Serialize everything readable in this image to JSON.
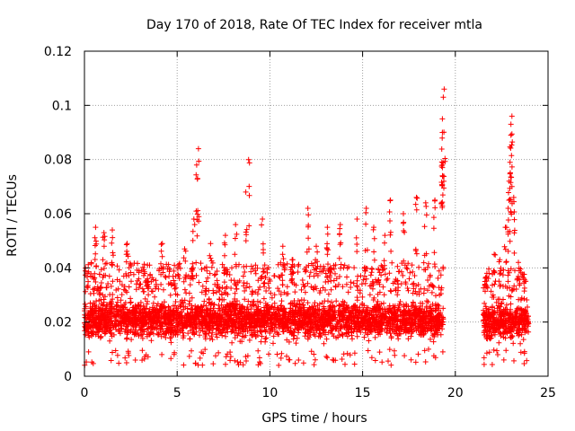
{
  "chart_data": {
    "type": "scatter",
    "title": "Day 170 of 2018, Rate Of TEC Index for receiver mtla",
    "xlabel": "GPS time / hours",
    "ylabel": "ROTI / TECUs",
    "xlim": [
      0,
      25
    ],
    "ylim": [
      0,
      0.12
    ],
    "xticks": [
      0,
      5,
      10,
      15,
      20,
      25
    ],
    "yticks": [
      0,
      0.02,
      0.04,
      0.06,
      0.08,
      0.1,
      0.12
    ],
    "xtick_labels": [
      "0",
      "5",
      "10",
      "15",
      "20",
      "25"
    ],
    "ytick_labels": [
      "0",
      "0.02",
      "0.04",
      "0.06",
      "0.08",
      "0.1",
      "0.12"
    ],
    "grid": true,
    "marker": "+",
    "color": "#ff0000",
    "data_segments": [
      {
        "x_start": 0.0,
        "x_end": 19.35,
        "typical_range": [
          0.006,
          0.032
        ]
      },
      {
        "x_start": 21.5,
        "x_end": 23.95,
        "typical_range": [
          0.006,
          0.03
        ]
      }
    ],
    "peaks": [
      {
        "x": 0.15,
        "y": 0.038
      },
      {
        "x": 0.6,
        "y": 0.055
      },
      {
        "x": 1.05,
        "y": 0.053
      },
      {
        "x": 1.5,
        "y": 0.054
      },
      {
        "x": 2.3,
        "y": 0.049
      },
      {
        "x": 3.4,
        "y": 0.036
      },
      {
        "x": 4.2,
        "y": 0.049
      },
      {
        "x": 5.4,
        "y": 0.047
      },
      {
        "x": 5.9,
        "y": 0.058
      },
      {
        "x": 6.05,
        "y": 0.078
      },
      {
        "x": 6.15,
        "y": 0.084
      },
      {
        "x": 6.1,
        "y": 0.073
      },
      {
        "x": 6.8,
        "y": 0.049
      },
      {
        "x": 7.6,
        "y": 0.052
      },
      {
        "x": 8.15,
        "y": 0.056
      },
      {
        "x": 8.7,
        "y": 0.068
      },
      {
        "x": 8.85,
        "y": 0.08
      },
      {
        "x": 9.6,
        "y": 0.058
      },
      {
        "x": 10.7,
        "y": 0.048
      },
      {
        "x": 11.2,
        "y": 0.043
      },
      {
        "x": 12.05,
        "y": 0.062
      },
      {
        "x": 12.5,
        "y": 0.048
      },
      {
        "x": 13.1,
        "y": 0.055
      },
      {
        "x": 13.8,
        "y": 0.056
      },
      {
        "x": 14.7,
        "y": 0.058
      },
      {
        "x": 15.2,
        "y": 0.062
      },
      {
        "x": 15.6,
        "y": 0.055
      },
      {
        "x": 16.2,
        "y": 0.052
      },
      {
        "x": 16.5,
        "y": 0.065
      },
      {
        "x": 17.2,
        "y": 0.06
      },
      {
        "x": 17.9,
        "y": 0.066
      },
      {
        "x": 18.4,
        "y": 0.064
      },
      {
        "x": 18.9,
        "y": 0.065
      },
      {
        "x": 19.3,
        "y": 0.078
      },
      {
        "x": 19.3,
        "y": 0.09
      },
      {
        "x": 19.3,
        "y": 0.095
      },
      {
        "x": 19.35,
        "y": 0.103
      },
      {
        "x": 19.4,
        "y": 0.106
      },
      {
        "x": 21.7,
        "y": 0.038
      },
      {
        "x": 22.1,
        "y": 0.045
      },
      {
        "x": 22.4,
        "y": 0.043
      },
      {
        "x": 22.7,
        "y": 0.055
      },
      {
        "x": 22.85,
        "y": 0.062
      },
      {
        "x": 22.9,
        "y": 0.072
      },
      {
        "x": 22.95,
        "y": 0.079
      },
      {
        "x": 23.0,
        "y": 0.089
      },
      {
        "x": 23.0,
        "y": 0.093
      },
      {
        "x": 23.05,
        "y": 0.096
      },
      {
        "x": 23.15,
        "y": 0.066
      },
      {
        "x": 23.4,
        "y": 0.042
      },
      {
        "x": 23.75,
        "y": 0.035
      }
    ]
  }
}
